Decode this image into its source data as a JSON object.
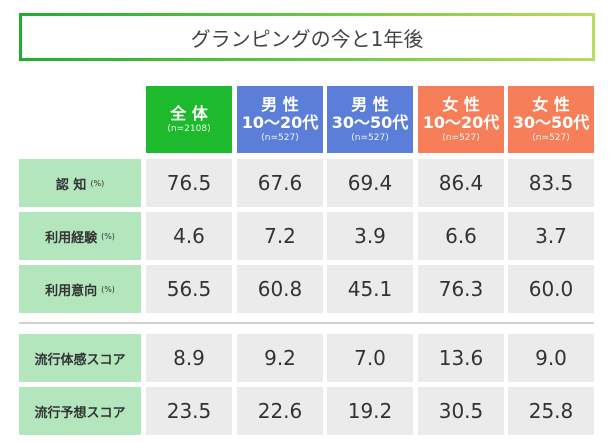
{
  "title": "グランピングの今と1年後",
  "colors": {
    "total": "#1dba2d",
    "male": "#5b7fd8",
    "female": "#f67f5a",
    "label_bg": "#b3e6bd",
    "cell_bg": "#ebebeb"
  },
  "chart_data": {
    "type": "table",
    "title": "グランピングの今と1年後",
    "columns": [
      {
        "line1": "全 体",
        "line2": "",
        "n": "(n=2108)",
        "group": "total"
      },
      {
        "line1": "男 性",
        "line2": "10〜20代",
        "n": "(n=527)",
        "group": "male"
      },
      {
        "line1": "男 性",
        "line2": "30〜50代",
        "n": "(n=527)",
        "group": "male"
      },
      {
        "line1": "女 性",
        "line2": "10〜20代",
        "n": "(n=527)",
        "group": "female"
      },
      {
        "line1": "女 性",
        "line2": "30〜50代",
        "n": "(n=527)",
        "group": "female"
      }
    ],
    "rows": [
      {
        "label": "認 知",
        "unit": "(%)",
        "values": [
          "76.5",
          "67.6",
          "69.4",
          "86.4",
          "83.5"
        ]
      },
      {
        "label": "利用経験",
        "unit": "(%)",
        "values": [
          "4.6",
          "7.2",
          "3.9",
          "6.6",
          "3.7"
        ]
      },
      {
        "label": "利用意向",
        "unit": "(%)",
        "values": [
          "56.5",
          "60.8",
          "45.1",
          "76.3",
          "60.0"
        ]
      },
      {
        "label": "流行体感スコア",
        "unit": "",
        "values": [
          "8.9",
          "9.2",
          "7.0",
          "13.6",
          "9.0"
        ]
      },
      {
        "label": "流行予想スコア",
        "unit": "",
        "values": [
          "23.5",
          "22.6",
          "19.2",
          "30.5",
          "25.8"
        ]
      }
    ]
  }
}
